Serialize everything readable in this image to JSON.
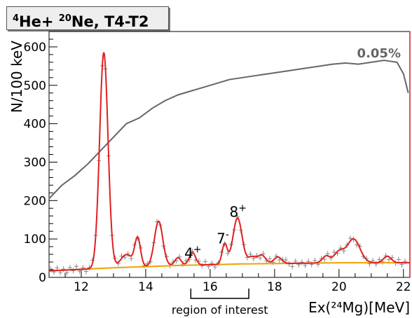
{
  "chart_data": {
    "type": "line",
    "title_parts": [
      {
        "sup": "4",
        "text": "He+ "
      },
      {
        "sup": "20",
        "text": "Ne, T4-T2"
      }
    ],
    "ylabel": "N/100 keV",
    "xlabel": "Ex(²⁴Mg)[MeV]",
    "xlim": [
      11,
      22.2
    ],
    "ylim": [
      0,
      640
    ],
    "x_ticks": [
      12,
      14,
      16,
      18,
      20,
      22
    ],
    "y_ticks": [
      0,
      100,
      200,
      300,
      400,
      500,
      600
    ],
    "efficiency_label": "0.05%",
    "annotations": [
      {
        "text": "4",
        "sup": "+",
        "x": 15.2,
        "y": 50
      },
      {
        "text": "7",
        "sup": "-",
        "x": 16.2,
        "y": 88
      },
      {
        "text": "8",
        "sup": "+",
        "x": 16.6,
        "y": 158
      }
    ],
    "region": {
      "label": "region of interest",
      "x0": 15.4,
      "x1": 17.2
    },
    "colors": {
      "fit": "#e02020",
      "background": "#f0a000",
      "efficiency": "#666666",
      "data": "#888888",
      "frame_right": "#cc2222"
    },
    "series": [
      {
        "role": "efficiency",
        "x": [
          11.0,
          11.4,
          11.8,
          12.2,
          12.6,
          13.0,
          13.4,
          13.8,
          14.2,
          14.6,
          15.0,
          15.4,
          15.8,
          16.2,
          16.6,
          17.0,
          17.4,
          17.8,
          18.2,
          18.6,
          19.0,
          19.4,
          19.8,
          20.2,
          20.6,
          21.0,
          21.4,
          21.8,
          22.0,
          22.15
        ],
        "y": [
          205,
          240,
          265,
          295,
          330,
          365,
          400,
          415,
          440,
          460,
          475,
          485,
          495,
          505,
          515,
          520,
          525,
          530,
          535,
          540,
          545,
          550,
          555,
          558,
          555,
          560,
          565,
          560,
          530,
          480
        ]
      },
      {
        "role": "background",
        "x": [
          11.0,
          12.0,
          13.0,
          14.0,
          15.0,
          16.0,
          17.0,
          18.0,
          19.0,
          20.0,
          21.0,
          22.2
        ],
        "y": [
          17,
          21,
          25,
          28,
          31,
          33,
          35,
          36,
          37,
          38,
          38,
          38
        ]
      },
      {
        "role": "fit",
        "peaks": [
          {
            "x": 12.7,
            "amp": 562,
            "sigma": 0.13
          },
          {
            "x": 13.4,
            "amp": 33,
            "sigma": 0.18
          },
          {
            "x": 13.75,
            "amp": 73,
            "sigma": 0.09
          },
          {
            "x": 14.4,
            "amp": 117,
            "sigma": 0.13
          },
          {
            "x": 15.0,
            "amp": 20,
            "sigma": 0.1
          },
          {
            "x": 15.45,
            "amp": 33,
            "sigma": 0.1
          },
          {
            "x": 16.45,
            "amp": 53,
            "sigma": 0.08
          },
          {
            "x": 16.85,
            "amp": 120,
            "sigma": 0.14
          },
          {
            "x": 17.3,
            "amp": 18,
            "sigma": 0.12
          },
          {
            "x": 17.6,
            "amp": 22,
            "sigma": 0.12
          },
          {
            "x": 18.1,
            "amp": 17,
            "sigma": 0.12
          },
          {
            "x": 19.6,
            "amp": 18,
            "sigma": 0.12
          },
          {
            "x": 20.0,
            "amp": 28,
            "sigma": 0.15
          },
          {
            "x": 20.45,
            "amp": 62,
            "sigma": 0.2
          },
          {
            "x": 21.5,
            "amp": 17,
            "sigma": 0.12
          }
        ]
      }
    ],
    "points_noise": [
      5,
      -4,
      7,
      -6,
      3,
      -8,
      6,
      -3,
      9,
      -5,
      4,
      -7,
      2,
      8,
      -2,
      -9,
      6,
      -4,
      3,
      -6
    ]
  }
}
